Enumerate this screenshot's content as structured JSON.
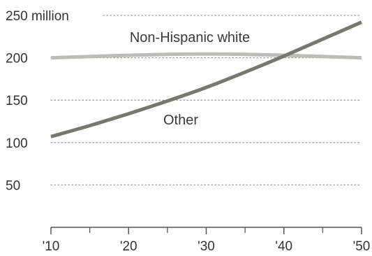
{
  "chart_data": {
    "type": "line",
    "x": [
      2010,
      2015,
      2020,
      2025,
      2030,
      2035,
      2040,
      2045,
      2050
    ],
    "xtick_labels": [
      "'10",
      "'20",
      "'30",
      "'40",
      "'50"
    ],
    "xtick_values": [
      2010,
      2020,
      2030,
      2040,
      2050
    ],
    "xminor_values": [
      2015,
      2025,
      2035,
      2045
    ],
    "ytick_labels": [
      "250 million",
      "200",
      "150",
      "100",
      "50"
    ],
    "ytick_values": [
      250,
      200,
      150,
      100,
      50
    ],
    "ylim": [
      0,
      250
    ],
    "xlim": [
      2010,
      2050
    ],
    "grid": true,
    "title": "",
    "xlabel": "",
    "ylabel": "",
    "series": [
      {
        "name": "Non-Hispanic white",
        "values": [
          200,
          201.5,
          203,
          204,
          204.5,
          204,
          203,
          201.5,
          200
        ],
        "color": "#bdbdb5"
      },
      {
        "name": "Other",
        "values": [
          107,
          120,
          134,
          149,
          165,
          183,
          202,
          222,
          242
        ],
        "color": "#77796a"
      }
    ],
    "colors": {
      "grid": "#9a9a9a",
      "axis": "#555555",
      "tick_text": "#333333"
    }
  }
}
